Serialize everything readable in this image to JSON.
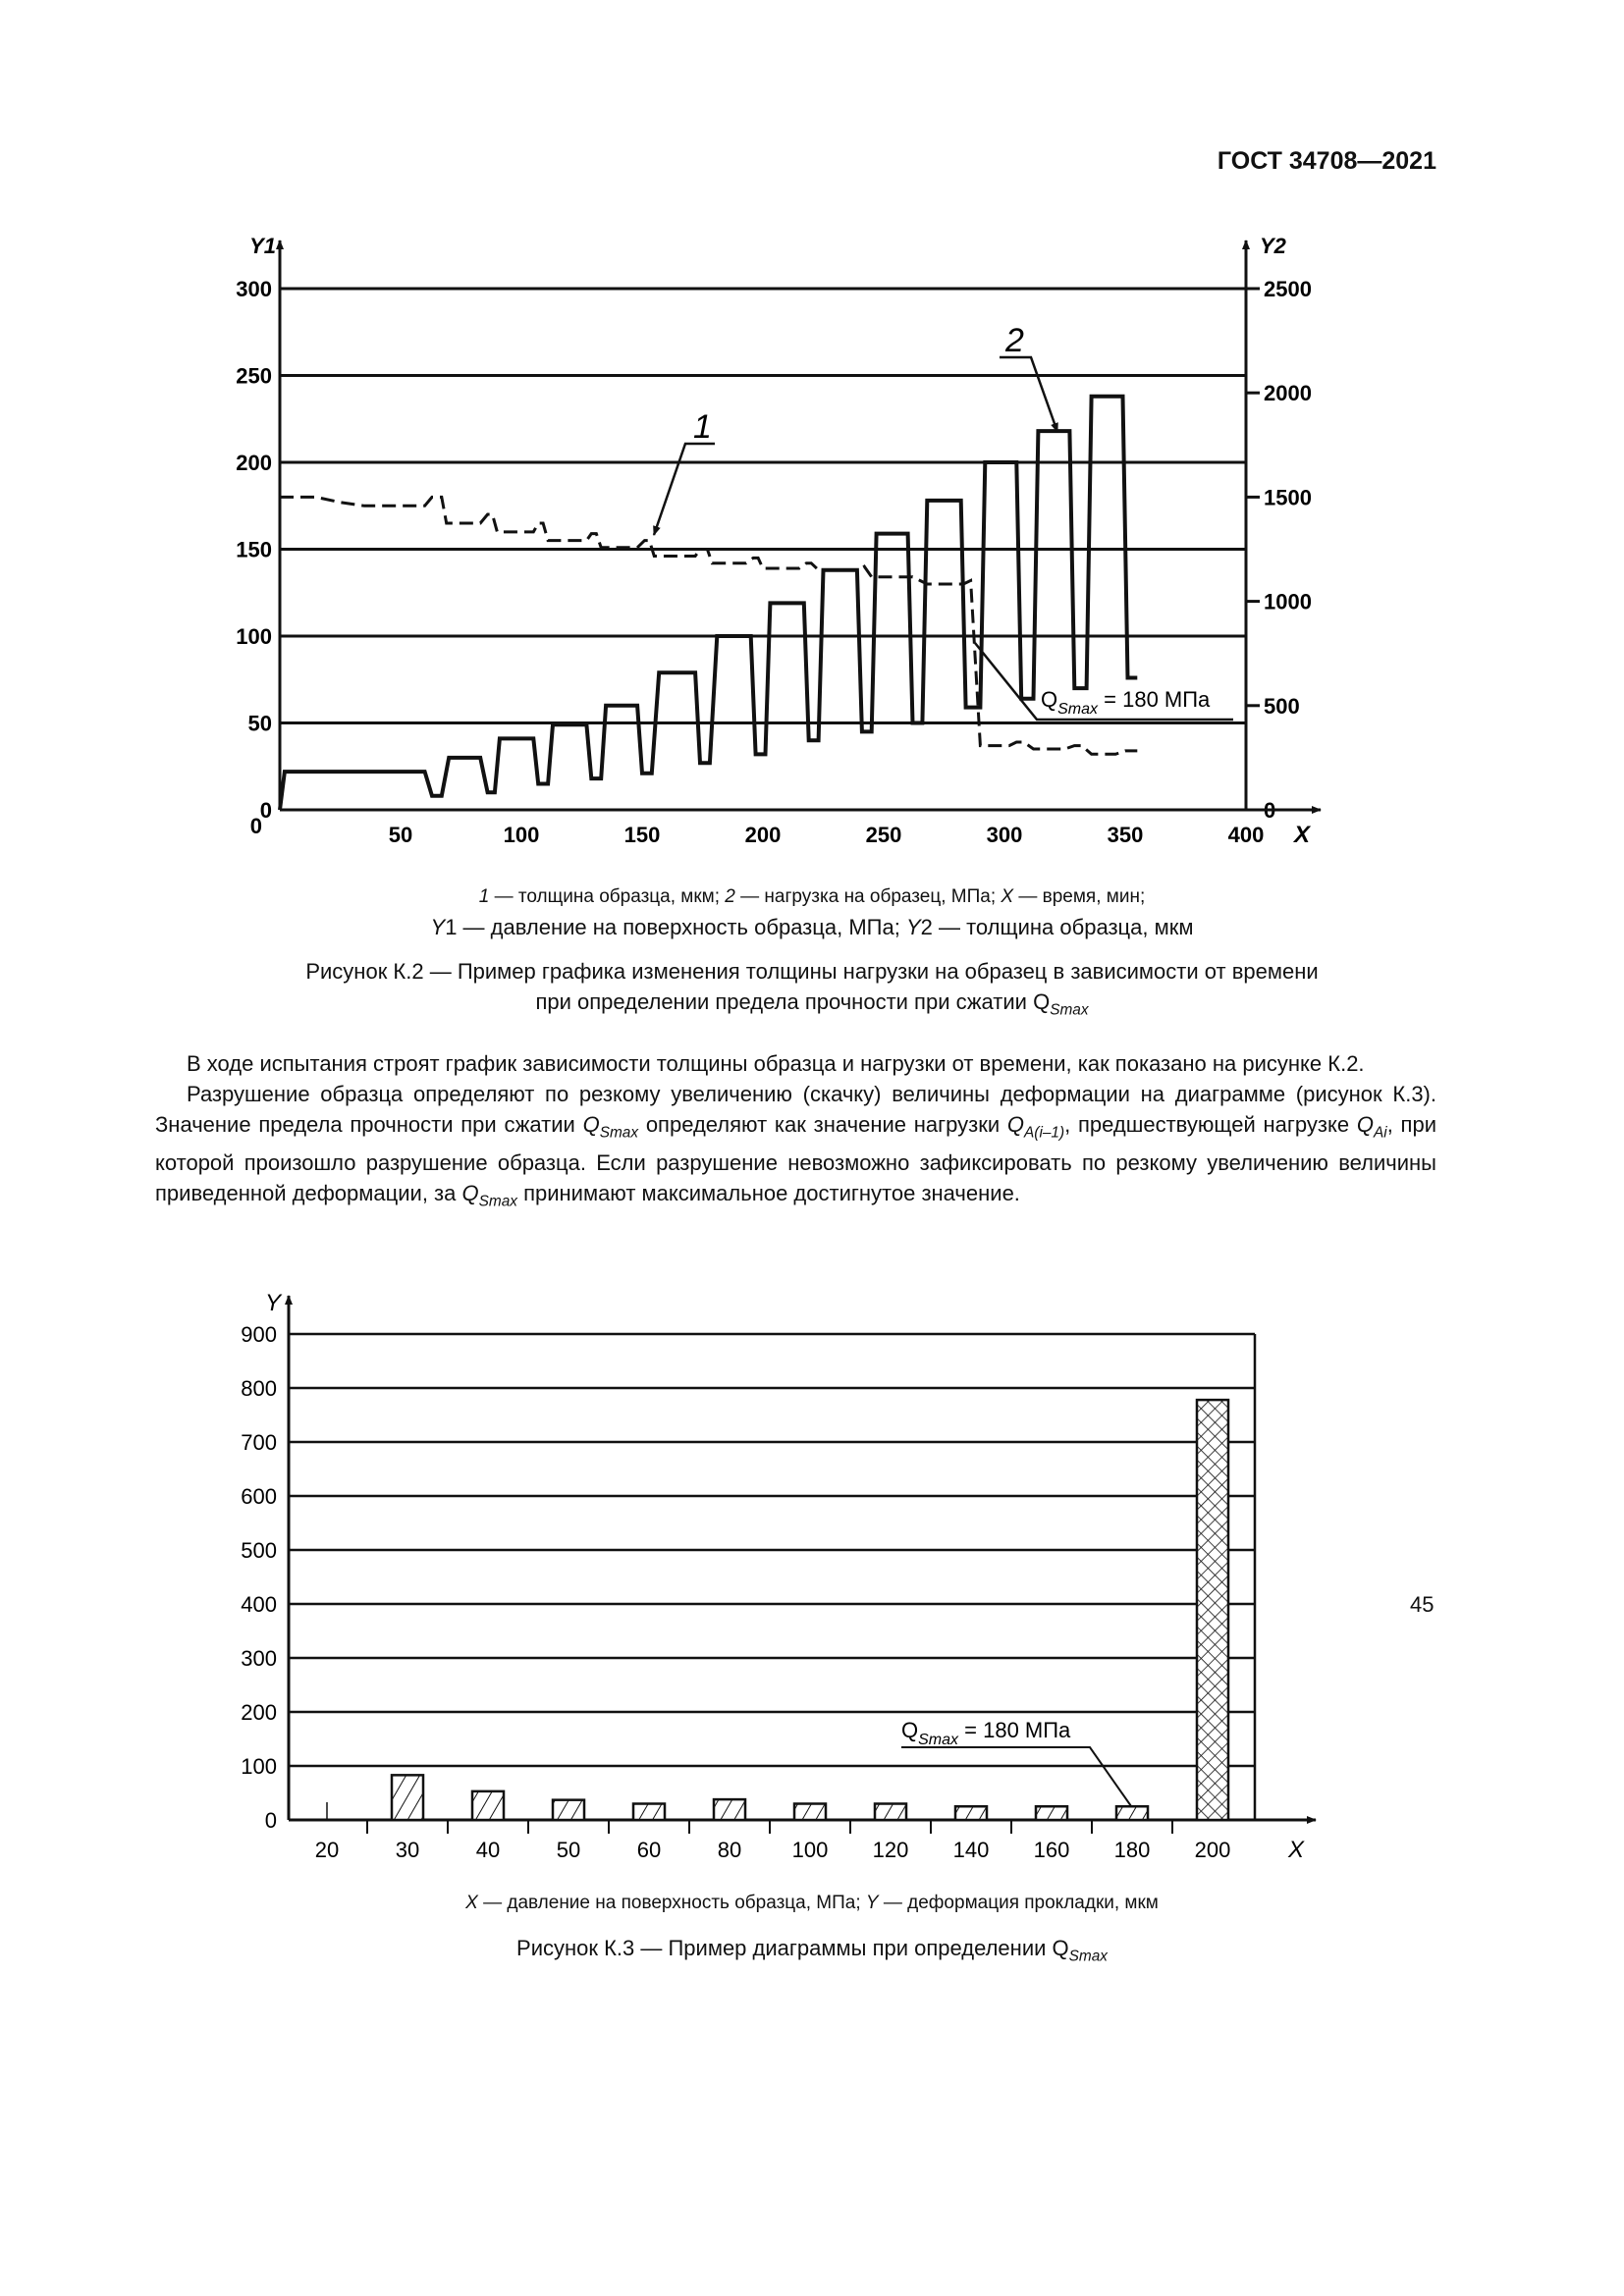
{
  "header": {
    "doc_id": "ГОСТ 34708—2021"
  },
  "figure_k2": {
    "legend_line1": [
      {
        "t": "1",
        "i": true
      },
      {
        "t": " — толщина образца, мкм; "
      },
      {
        "t": "2",
        "i": true
      },
      {
        "t": " — нагрузка на образец, МПа; "
      },
      {
        "t": "X",
        "i": true
      },
      {
        "t": " — время, мин;"
      }
    ],
    "legend_line2": [
      {
        "t": "Y",
        "i": true
      },
      {
        "t": "1 — давление на поверхность образца, МПа; "
      },
      {
        "t": "Y",
        "i": true
      },
      {
        "t": "2 — толщина образца, мкм"
      }
    ],
    "caption_line1": "Рисунок К.2 — Пример графика изменения толщины нагрузки на образец в зависимости от времени",
    "caption_line2": "при определении предела прочности при сжатии Q",
    "caption_sub": "Smax"
  },
  "paragraphs": [
    [
      {
        "t": "В ходе испытания строят график зависимости толщины образца и нагрузки от времени, как показано на рисунке К.2."
      }
    ],
    [
      {
        "t": "Разрушение образца определяют по резкому увеличению (скачку) величины деформации на диаграмме (рисунок К.3). Значение предела прочности при сжатии "
      },
      {
        "t": "Q",
        "i": true
      },
      {
        "sub": "Smax"
      },
      {
        "t": " определяют как значение нагрузки "
      },
      {
        "t": "Q",
        "i": true
      },
      {
        "sub": "A(i–1)"
      },
      {
        "t": ", предшествующей нагрузке "
      },
      {
        "t": "Q",
        "i": true
      },
      {
        "sub": "Ai"
      },
      {
        "t": ", при которой произошло разрушение образца. Если разрушение невозможно зафиксировать по резкому увеличению величины приведенной деформации, за "
      },
      {
        "t": "Q",
        "i": true
      },
      {
        "sub": "Smax"
      },
      {
        "t": " принимают максимальное достигнутое значение."
      }
    ]
  ],
  "figure_k3": {
    "legend": [
      {
        "t": "X",
        "i": true
      },
      {
        "t": " — давление на поверхность образца, МПа; "
      },
      {
        "t": "Y",
        "i": true
      },
      {
        "t": " — деформация прокладки, мкм"
      }
    ],
    "caption": "Рисунок К.3 — Пример диаграммы при определении Q",
    "caption_sub": "Smax"
  },
  "page_number": "45",
  "chart_data": [
    {
      "type": "line",
      "xlabel": "X",
      "ylabel": "Y1",
      "y2label": "Y2",
      "xlim": [
        0,
        400
      ],
      "ylim": [
        0,
        300
      ],
      "y2lim": [
        0,
        2500
      ],
      "x_ticks": [
        50,
        100,
        150,
        200,
        250,
        300,
        350,
        400
      ],
      "y_ticks": [
        0,
        50,
        100,
        150,
        200,
        250,
        300
      ],
      "y2_ticks": [
        0,
        500,
        1000,
        1500,
        2000,
        2500
      ],
      "grid": true,
      "series": [
        {
          "name": "2",
          "axis": "y1",
          "style": "solid",
          "points": [
            [
              0,
              0
            ],
            [
              2,
              22
            ],
            [
              60,
              22
            ],
            [
              63,
              8
            ],
            [
              67,
              8
            ],
            [
              70,
              30
            ],
            [
              83,
              30
            ],
            [
              86,
              10
            ],
            [
              89,
              10
            ],
            [
              91,
              41
            ],
            [
              105,
              41
            ],
            [
              107,
              15
            ],
            [
              111,
              15
            ],
            [
              113,
              49
            ],
            [
              127,
              49
            ],
            [
              129,
              18
            ],
            [
              133,
              18
            ],
            [
              135,
              60
            ],
            [
              148,
              60
            ],
            [
              150,
              21
            ],
            [
              154,
              21
            ],
            [
              157,
              79
            ],
            [
              172,
              79
            ],
            [
              174,
              27
            ],
            [
              178,
              27
            ],
            [
              181,
              100
            ],
            [
              195,
              100
            ],
            [
              197,
              32
            ],
            [
              201,
              32
            ],
            [
              203,
              119
            ],
            [
              217,
              119
            ],
            [
              219,
              40
            ],
            [
              223,
              40
            ],
            [
              225,
              138
            ],
            [
              239,
              138
            ],
            [
              241,
              45
            ],
            [
              245,
              45
            ],
            [
              247,
              159
            ],
            [
              260,
              159
            ],
            [
              262,
              50
            ],
            [
              266,
              50
            ],
            [
              268,
              178
            ],
            [
              282,
              178
            ],
            [
              284,
              59
            ],
            [
              290,
              59
            ],
            [
              292,
              200
            ],
            [
              305,
              200
            ],
            [
              307,
              64
            ],
            [
              312,
              64
            ],
            [
              314,
              218
            ],
            [
              327,
              218
            ],
            [
              329,
              70
            ],
            [
              334,
              70
            ],
            [
              336,
              238
            ],
            [
              349,
              238
            ],
            [
              351,
              76
            ],
            [
              355,
              76
            ]
          ]
        },
        {
          "name": "1",
          "axis": "y2",
          "style": "dashed",
          "points": [
            [
              0,
              1500
            ],
            [
              15,
              1500
            ],
            [
              25,
              1475
            ],
            [
              35,
              1458
            ],
            [
              60,
              1458
            ],
            [
              63,
              1500
            ],
            [
              67,
              1500
            ],
            [
              69,
              1375
            ],
            [
              83,
              1375
            ],
            [
              86,
              1417
            ],
            [
              88,
              1417
            ],
            [
              90,
              1333
            ],
            [
              105,
              1333
            ],
            [
              107,
              1375
            ],
            [
              109,
              1375
            ],
            [
              111,
              1292
            ],
            [
              127,
              1292
            ],
            [
              129,
              1325
            ],
            [
              131,
              1325
            ],
            [
              133,
              1258
            ],
            [
              148,
              1258
            ],
            [
              151,
              1292
            ],
            [
              153,
              1292
            ],
            [
              155,
              1217
            ],
            [
              172,
              1217
            ],
            [
              174,
              1250
            ],
            [
              177,
              1250
            ],
            [
              179,
              1183
            ],
            [
              193,
              1183
            ],
            [
              196,
              1208
            ],
            [
              198,
              1208
            ],
            [
              200,
              1158
            ],
            [
              215,
              1158
            ],
            [
              218,
              1183
            ],
            [
              220,
              1183
            ],
            [
              223,
              1150
            ],
            [
              240,
              1150
            ],
            [
              242,
              1167
            ],
            [
              245,
              1117
            ],
            [
              262,
              1117
            ],
            [
              265,
              1100
            ],
            [
              268,
              1083
            ],
            [
              283,
              1083
            ],
            [
              286,
              1100
            ],
            [
              290,
              308
            ],
            [
              302,
              308
            ],
            [
              305,
              325
            ],
            [
              308,
              325
            ],
            [
              312,
              292
            ],
            [
              325,
              292
            ],
            [
              329,
              308
            ],
            [
              332,
              308
            ],
            [
              336,
              267
            ],
            [
              346,
              267
            ],
            [
              350,
              283
            ],
            [
              355,
              283
            ]
          ]
        }
      ],
      "annotations": {
        "label1": "1",
        "label2": "2",
        "qsmax_q": "Q",
        "qsmax_sub": "Smax",
        "qsmax_rest": " = 180 МПа"
      }
    },
    {
      "type": "bar",
      "xlabel": "X",
      "ylabel": "Y",
      "categories": [
        "20",
        "30",
        "40",
        "50",
        "60",
        "80",
        "100",
        "120",
        "140",
        "160",
        "180",
        "200"
      ],
      "values": [
        0,
        83,
        53,
        37,
        30,
        38,
        30,
        30,
        25,
        25,
        25,
        778
      ],
      "hatch": [
        "diagonal",
        "diagonal",
        "diagonal",
        "diagonal",
        "diagonal",
        "diagonal",
        "diagonal",
        "diagonal",
        "diagonal",
        "diagonal",
        "diagonal",
        "crosshatch"
      ],
      "ylim": [
        0,
        900
      ],
      "y_ticks": [
        0,
        100,
        200,
        300,
        400,
        500,
        600,
        700,
        800,
        900
      ],
      "grid": true,
      "annotations": {
        "qsmax_q": "Q",
        "qsmax_sub": "Smax",
        "qsmax_rest": " = 180 МПа"
      }
    }
  ]
}
